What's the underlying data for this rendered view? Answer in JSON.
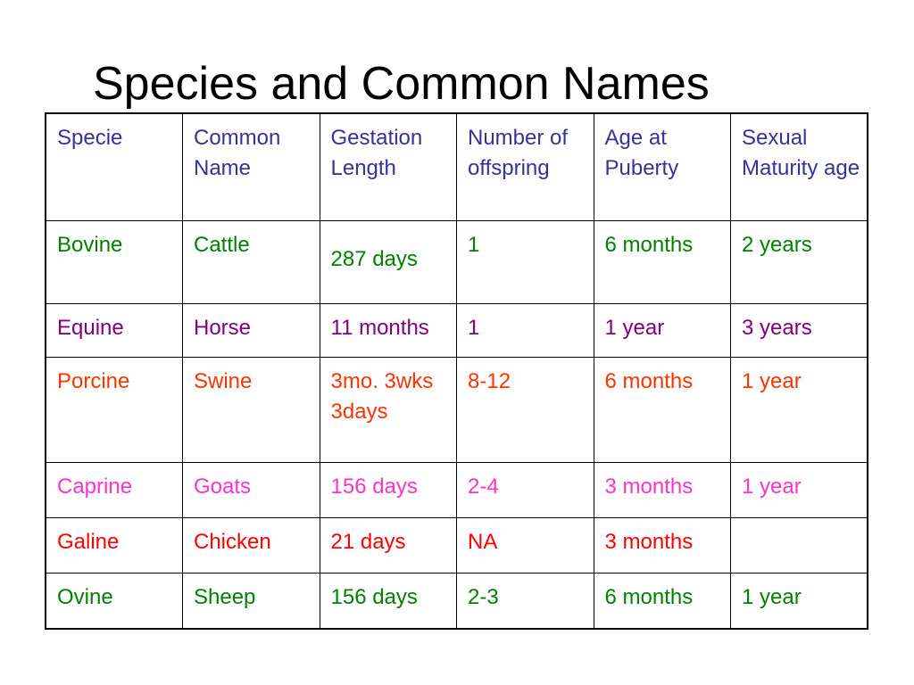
{
  "title": "Species and Common Names",
  "table": {
    "headers": [
      "Specie",
      "Common Name",
      "Gestation Length",
      "Number of offspring",
      "Age at Puberty",
      "Sexual Maturity age"
    ],
    "header_color": "#333399",
    "rows": [
      {
        "key": "bovine",
        "color": "#008000",
        "cells": [
          "Bovine",
          "Cattle",
          "287 days",
          "1",
          "6 months",
          "2 years"
        ]
      },
      {
        "key": "equine",
        "color": "#800080",
        "cells": [
          "Equine",
          "Horse",
          "11 months",
          "1",
          "1 year",
          "3 years"
        ]
      },
      {
        "key": "porcine",
        "color": "#ff3300",
        "cells": [
          "Porcine",
          "Swine",
          "3mo. 3wks 3days",
          "8-12",
          "6 months",
          "1 year"
        ]
      },
      {
        "key": "caprine",
        "color": "#ff33cc",
        "cells": [
          "Caprine",
          "Goats",
          "156 days",
          "2-4",
          "3 months",
          "1 year"
        ]
      },
      {
        "key": "galine",
        "color": "#ff0000",
        "cells": [
          "Galine",
          "Chicken",
          "21 days",
          "NA",
          "3 months",
          ""
        ]
      },
      {
        "key": "ovine",
        "color": "#008000",
        "cells": [
          "Ovine",
          "Sheep",
          "156 days",
          "2-3",
          "6 months",
          "1 year"
        ]
      }
    ]
  }
}
